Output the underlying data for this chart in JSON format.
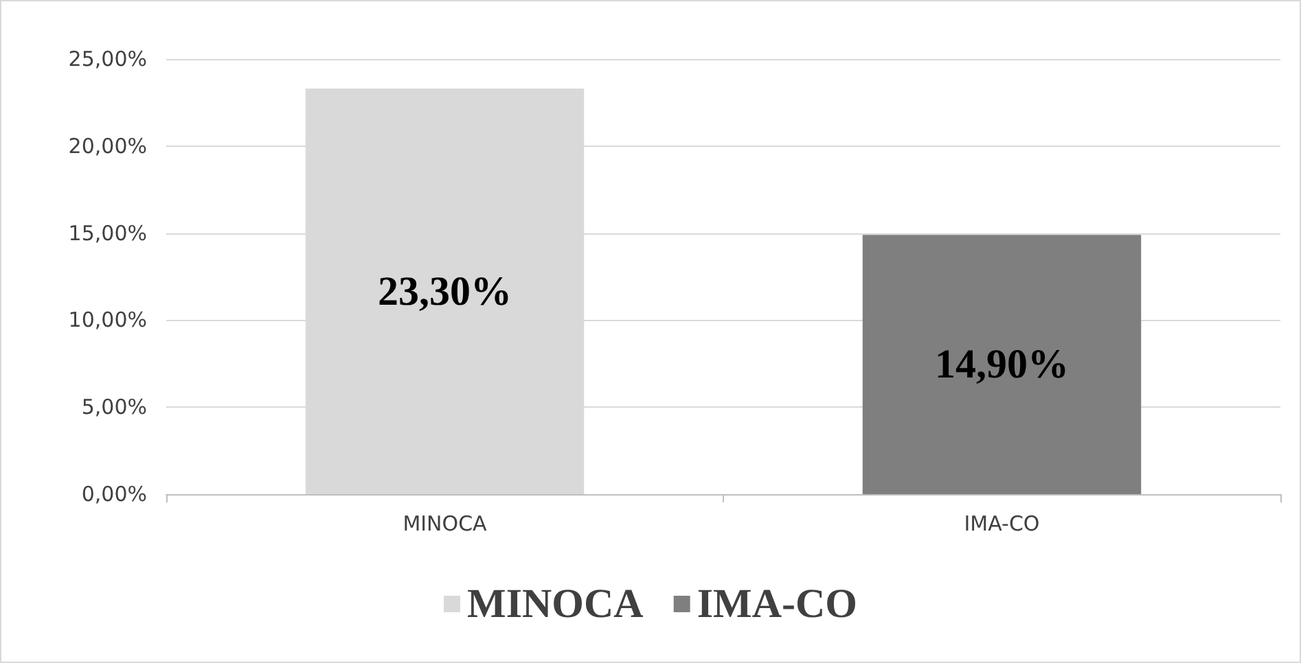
{
  "chart_data": {
    "type": "bar",
    "categories": [
      "MINOCA",
      "IMA-CO"
    ],
    "series": [
      {
        "name": "MINOCA",
        "color": "#d9d9d9",
        "values": [
          23.3,
          null
        ],
        "value_labels": [
          "23,30%",
          null
        ]
      },
      {
        "name": "IMA-CO",
        "color": "#7f7f7f",
        "values": [
          null,
          14.9
        ],
        "value_labels": [
          null,
          "14,90%"
        ]
      }
    ],
    "ylim": [
      0,
      25
    ],
    "yticks": [
      {
        "value": 0,
        "label": "0,00%"
      },
      {
        "value": 5,
        "label": "5,00%"
      },
      {
        "value": 10,
        "label": "10,00%"
      },
      {
        "value": 15,
        "label": "15,00%"
      },
      {
        "value": 20,
        "label": "20,00%"
      },
      {
        "value": 25,
        "label": "25,00%"
      }
    ],
    "grid": "y",
    "legend": "bottom"
  }
}
